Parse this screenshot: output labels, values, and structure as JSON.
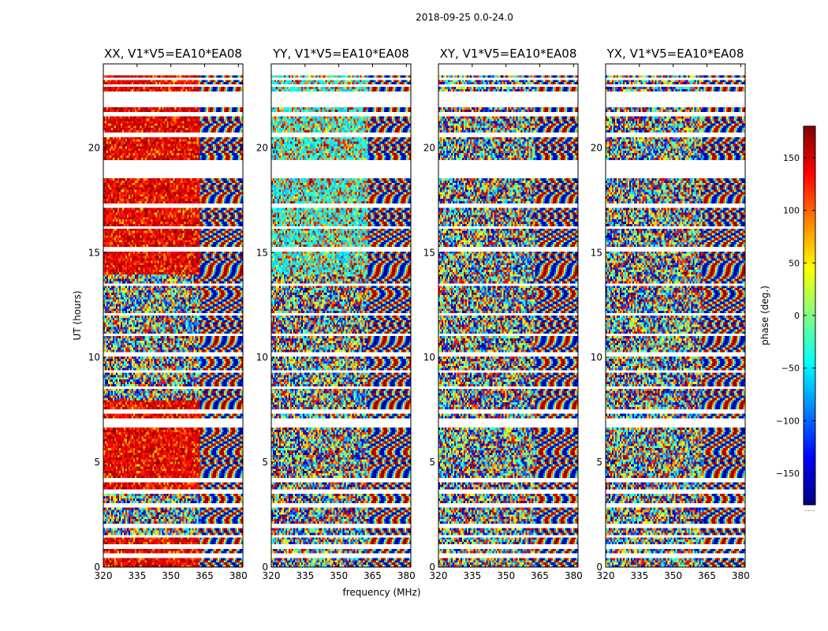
{
  "figure": {
    "suptitle": "2018-09-25 0.0-24.0",
    "colorbar": {
      "label": "phase (deg.)",
      "ticks": [
        "150",
        "100",
        "50",
        "0",
        "−50",
        "−100",
        "−150"
      ],
      "tick_values": [
        150,
        100,
        50,
        0,
        -50,
        -100,
        -150
      ],
      "range": [
        -180,
        180
      ],
      "colormap": "jet",
      "colors": [
        "#00007f",
        "#0000ff",
        "#0080ff",
        "#00ffff",
        "#80ff80",
        "#ffff00",
        "#ff8000",
        "#ff0000",
        "#7f0000"
      ]
    },
    "dots_label": "......"
  },
  "chart_data": [
    {
      "type": "heatmap",
      "title": "XX, V1*V5=EA10*EA08",
      "xlabel": "",
      "ylabel": "UT (hours)",
      "xlim": [
        320,
        382
      ],
      "ylim": [
        0,
        24
      ],
      "xticks": [
        "320",
        "335",
        "350",
        "365",
        "380"
      ],
      "xtick_values": [
        320,
        335,
        350,
        365,
        380
      ],
      "yticks": [
        "0",
        "5",
        "10",
        "15",
        "20"
      ],
      "ytick_values": [
        0,
        5,
        10,
        15,
        20
      ],
      "bias": "red"
    },
    {
      "type": "heatmap",
      "title": "YY, V1*V5=EA10*EA08",
      "xlabel": "frequency (MHz)",
      "ylabel": "",
      "xlim": [
        320,
        382
      ],
      "ylim": [
        0,
        24
      ],
      "xticks": [
        "320",
        "335",
        "350",
        "365",
        "380"
      ],
      "xtick_values": [
        320,
        335,
        350,
        365,
        380
      ],
      "yticks": [
        "0",
        "5",
        "10",
        "15",
        "20"
      ],
      "ytick_values": [
        0,
        5,
        10,
        15,
        20
      ],
      "bias": "cyan"
    },
    {
      "type": "heatmap",
      "title": "XY, V1*V5=EA10*EA08",
      "xlabel": "",
      "ylabel": "",
      "xlim": [
        320,
        382
      ],
      "ylim": [
        0,
        24
      ],
      "xticks": [
        "320",
        "335",
        "350",
        "365",
        "380"
      ],
      "xtick_values": [
        320,
        335,
        350,
        365,
        380
      ],
      "yticks": [
        "0",
        "5",
        "10",
        "15",
        "20"
      ],
      "ytick_values": [
        0,
        5,
        10,
        15,
        20
      ],
      "bias": "none"
    },
    {
      "type": "heatmap",
      "title": "YX, V1*V5=EA10*EA08",
      "xlabel": "",
      "ylabel": "",
      "xlim": [
        320,
        382
      ],
      "ylim": [
        0,
        24
      ],
      "xticks": [
        "320",
        "335",
        "350",
        "365",
        "380"
      ],
      "xtick_values": [
        320,
        335,
        350,
        365,
        380
      ],
      "yticks": [
        "0",
        "5",
        "10",
        "15",
        "20"
      ],
      "ytick_values": [
        0,
        5,
        10,
        15,
        20
      ],
      "bias": "none"
    }
  ],
  "gaps_ut": [
    [
      0.52,
      0.62
    ],
    [
      0.98,
      1.05
    ],
    [
      1.42,
      1.5
    ],
    [
      1.92,
      2.02
    ],
    [
      2.88,
      2.98
    ],
    [
      3.55,
      3.62
    ],
    [
      4.05,
      4.15
    ],
    [
      6.72,
      7.02
    ],
    [
      7.35,
      7.42
    ],
    [
      8.52,
      8.6
    ],
    [
      9.32,
      9.38
    ],
    [
      10.08,
      10.15
    ],
    [
      11.02,
      11.08
    ],
    [
      12.05,
      12.1
    ],
    [
      13.42,
      13.52
    ],
    [
      15.12,
      15.2
    ],
    [
      16.18,
      16.25
    ],
    [
      17.15,
      17.28
    ],
    [
      18.55,
      19.4
    ],
    [
      20.58,
      20.66
    ],
    [
      21.52,
      21.6
    ],
    [
      21.97,
      22.65
    ],
    [
      22.92,
      23.0
    ],
    [
      23.25,
      23.32
    ],
    [
      23.52,
      24.0
    ]
  ],
  "annotations": {
    "dense_boundary_mhz": 363
  }
}
